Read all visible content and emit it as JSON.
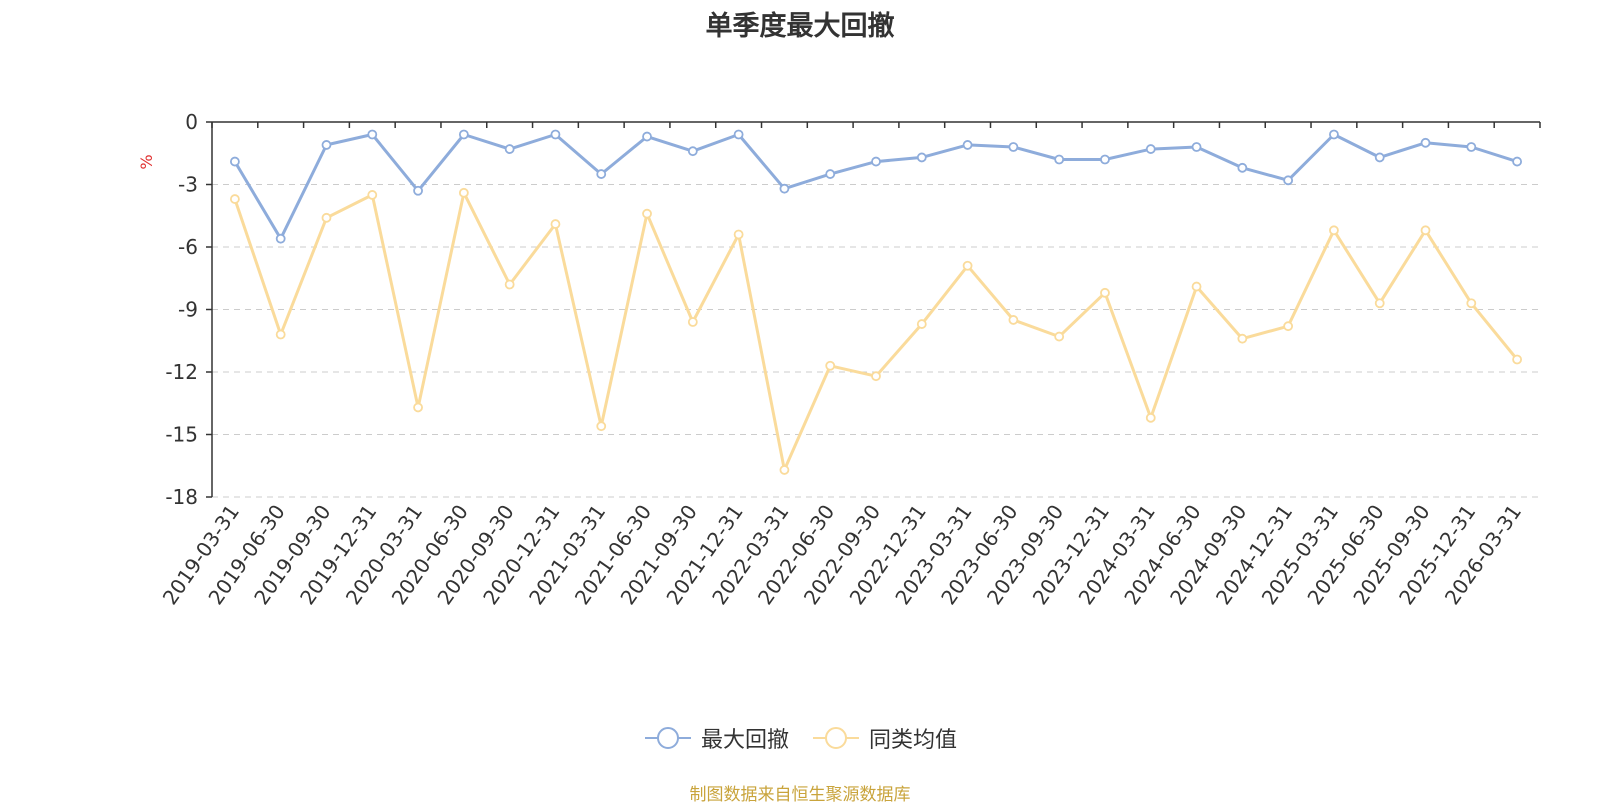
{
  "chart_data": {
    "type": "line",
    "title": "单季度最大回撤",
    "ylabel": "%",
    "xlabel": "",
    "ylim": [
      -18,
      0
    ],
    "yticks": [
      0,
      -3,
      -6,
      -9,
      -12,
      -15,
      -18
    ],
    "grid": true,
    "legend_position": "bottom",
    "categories": [
      "2019-03-31",
      "2019-06-30",
      "2019-09-30",
      "2019-12-31",
      "2020-03-31",
      "2020-06-30",
      "2020-09-30",
      "2020-12-31",
      "2021-03-31",
      "2021-06-30",
      "2021-09-30",
      "2021-12-31",
      "2022-03-31",
      "2022-06-30",
      "2022-09-30",
      "2022-12-31",
      "2023-03-31",
      "2023-06-30",
      "2023-09-30",
      "2023-12-31",
      "2024-03-31",
      "2024-06-30",
      "2024-09-30",
      "2024-12-31",
      "2025-03-31",
      "2025-06-30",
      "2025-09-30",
      "2025-12-31",
      "2026-03-31"
    ],
    "series": [
      {
        "name": "最大回撤",
        "color": "#8eacdb",
        "values": [
          -1.9,
          -5.6,
          -1.1,
          -0.6,
          -3.3,
          -0.6,
          -1.3,
          -0.6,
          -2.5,
          -0.7,
          -1.4,
          -0.6,
          -3.2,
          -2.5,
          -1.9,
          -1.7,
          -1.1,
          -1.2,
          -1.8,
          -1.8,
          -1.3,
          -1.2,
          -2.2,
          -2.8,
          -0.6,
          -1.7,
          -1.0,
          -1.2,
          -1.9
        ]
      },
      {
        "name": "同类均值",
        "color": "#fadb9b",
        "values": [
          -3.7,
          -10.2,
          -4.6,
          -3.5,
          -13.7,
          -3.4,
          -7.8,
          -4.9,
          -14.6,
          -4.4,
          -9.6,
          -5.4,
          -16.7,
          -11.7,
          -12.2,
          -9.7,
          -6.9,
          -9.5,
          -10.3,
          -8.2,
          -14.2,
          -7.9,
          -10.4,
          -9.8,
          -5.2,
          -8.7,
          -5.2,
          -8.7,
          -11.4
        ]
      }
    ]
  },
  "footer": {
    "source": "制图数据来自恒生聚源数据库"
  }
}
